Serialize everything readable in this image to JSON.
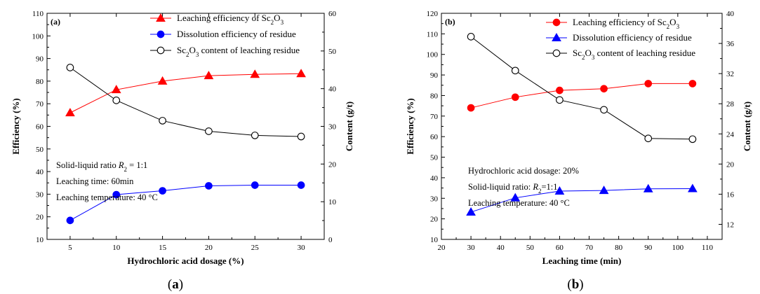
{
  "chart_data": [
    {
      "type": "line",
      "panel_label": "(a)",
      "caption": "(a)",
      "xlabel": "Hydrochloric acid dosage (%)",
      "ylabel": "Efficiency (%)",
      "y2label": "Content (g/t)",
      "xlim": [
        2.5,
        32.5
      ],
      "ylim": [
        10,
        110
      ],
      "y2lim": [
        0,
        60
      ],
      "xticks": [
        5,
        10,
        15,
        20,
        25,
        30
      ],
      "yticks": [
        10,
        20,
        30,
        40,
        50,
        60,
        70,
        80,
        90,
        100,
        110
      ],
      "y2ticks": [
        0,
        10,
        20,
        30,
        40,
        50,
        60
      ],
      "legend_position": "top-right",
      "notes": [
        {
          "prefix": "Solid-liquid ratio ",
          "italic": "R",
          "sub": "2",
          "suffix": " = 1:1"
        },
        {
          "prefix": "Leaching time: 60min"
        },
        {
          "prefix": "Leaching temperature: 40 °C"
        }
      ],
      "series": [
        {
          "name_pre": "Leaching efficiency of Sc",
          "name_sub1": "2",
          "name_mid": "O",
          "name_sub2": "3",
          "name_post": "",
          "axis": "left",
          "marker": "triangle",
          "filled": true,
          "color": "#ff0000",
          "x": [
            5,
            10,
            15,
            20,
            25,
            30
          ],
          "values": [
            66,
            76.2,
            80,
            82.4,
            83,
            83.3
          ]
        },
        {
          "name_pre": "Dissolution efficiency of residue",
          "axis": "left",
          "marker": "circle",
          "filled": true,
          "color": "#0000ff",
          "x": [
            5,
            10,
            15,
            20,
            25,
            30
          ],
          "values": [
            18.4,
            29.8,
            31.5,
            33.7,
            34,
            34
          ]
        },
        {
          "name_pre": "Sc",
          "name_sub1": "2",
          "name_mid": "O",
          "name_sub2": "3",
          "name_post": " content of leaching residue",
          "axis": "right",
          "marker": "circle",
          "filled": false,
          "color": "#000000",
          "x": [
            5,
            10,
            15,
            20,
            25,
            30
          ],
          "values": [
            45.6,
            36.9,
            31.5,
            28.7,
            27.6,
            27.3
          ]
        }
      ]
    },
    {
      "type": "line",
      "panel_label": "(b)",
      "caption": "(b)",
      "xlabel": "Leaching time (min)",
      "ylabel": "Efficiency (%)",
      "y2label": "Content (g/t)",
      "xlim": [
        20,
        115
      ],
      "ylim": [
        10,
        120
      ],
      "y2lim": [
        10,
        40
      ],
      "xticks": [
        20,
        30,
        40,
        50,
        60,
        70,
        80,
        90,
        100,
        110
      ],
      "yticks": [
        10,
        20,
        30,
        40,
        50,
        60,
        70,
        80,
        90,
        100,
        110,
        120
      ],
      "y2ticks": [
        12,
        16,
        20,
        24,
        28,
        32,
        36,
        40
      ],
      "legend_position": "top-right",
      "notes": [
        {
          "prefix": "Hydrochloric acid dosage: 20%"
        },
        {
          "prefix": "Solid-liquid ratio: ",
          "italic": "R",
          "sub": "2",
          "suffix": "=1:1"
        },
        {
          "prefix": "Leaching temperature: 40 °C"
        }
      ],
      "series": [
        {
          "name_pre": "Leaching efficiency of Sc",
          "name_sub1": "2",
          "name_mid": "O",
          "name_sub2": "3",
          "name_post": "",
          "axis": "left",
          "marker": "circle",
          "filled": true,
          "color": "#ff0000",
          "x": [
            30,
            45,
            60,
            75,
            90,
            105
          ],
          "values": [
            74,
            79.2,
            82.5,
            83.3,
            85.8,
            85.8
          ]
        },
        {
          "name_pre": "Dissolution efficiency of residue",
          "axis": "left",
          "marker": "triangle",
          "filled": true,
          "color": "#0000ff",
          "x": [
            30,
            45,
            60,
            75,
            90,
            105
          ],
          "values": [
            23.3,
            30.2,
            33.5,
            33.8,
            34.6,
            34.7
          ]
        },
        {
          "name_pre": "Sc",
          "name_sub1": "2",
          "name_mid": "O",
          "name_sub2": "3",
          "name_post": " content of leaching residue",
          "axis": "right",
          "marker": "circle",
          "filled": false,
          "color": "#000000",
          "x": [
            30,
            45,
            60,
            75,
            90,
            105
          ],
          "values": [
            36.9,
            32.4,
            28.5,
            27.2,
            23.4,
            23.3
          ]
        }
      ]
    }
  ]
}
